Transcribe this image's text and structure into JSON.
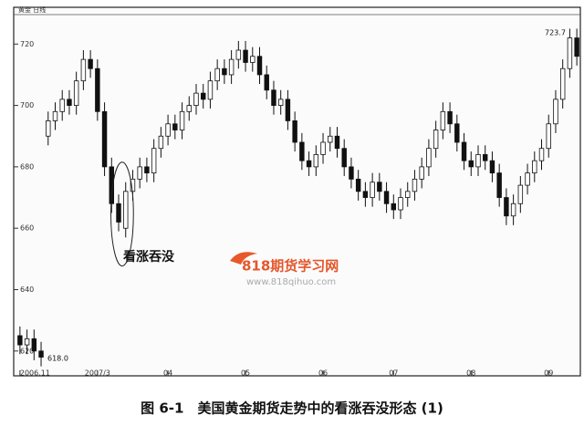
{
  "chart_data": {
    "type": "candlestick",
    "header": "黄金 日线",
    "annotation": "看涨吞没",
    "high_label": "723.7",
    "low_label": "618.0",
    "watermark": "818期货学习网",
    "watermark_url": "www.818qihuo.com",
    "caption": "图 6-1　美国黄金期货走势中的看涨吞没形态 (1)",
    "up_color": "#ffffff",
    "down_color": "#111111",
    "open": [
      625,
      622,
      624,
      620,
      690,
      695,
      698,
      702,
      700,
      708,
      715,
      712,
      698,
      680,
      668,
      660,
      672,
      676,
      680,
      678,
      686,
      690,
      694,
      692,
      698,
      700,
      704,
      702,
      708,
      712,
      710,
      715,
      718,
      714,
      716,
      710,
      705,
      700,
      702,
      695,
      688,
      682,
      680,
      684,
      688,
      690,
      686,
      680,
      676,
      672,
      670,
      675,
      672,
      668,
      666,
      670,
      672,
      676,
      680,
      686,
      692,
      698,
      694,
      688,
      682,
      680,
      684,
      682,
      678,
      670,
      664,
      668,
      674,
      678,
      682,
      686,
      694,
      702,
      712,
      722
    ],
    "high": [
      628,
      627,
      627,
      623,
      698,
      701,
      705,
      705,
      711,
      718,
      718,
      715,
      701,
      683,
      671,
      675,
      679,
      683,
      683,
      689,
      693,
      697,
      697,
      701,
      703,
      707,
      707,
      711,
      715,
      715,
      718,
      721,
      721,
      719,
      719,
      713,
      708,
      705,
      705,
      698,
      691,
      685,
      687,
      691,
      693,
      693,
      689,
      683,
      679,
      675,
      678,
      678,
      675,
      671,
      673,
      675,
      679,
      683,
      689,
      695,
      701,
      701,
      697,
      691,
      685,
      687,
      687,
      685,
      681,
      673,
      671,
      677,
      681,
      685,
      689,
      697,
      705,
      715,
      725,
      725
    ],
    "low": [
      619,
      619,
      617,
      615,
      687,
      692,
      695,
      697,
      697,
      705,
      709,
      695,
      677,
      665,
      659,
      657,
      669,
      673,
      675,
      675,
      683,
      687,
      689,
      689,
      695,
      697,
      699,
      699,
      705,
      707,
      707,
      712,
      711,
      711,
      707,
      702,
      697,
      697,
      692,
      685,
      679,
      677,
      677,
      681,
      685,
      683,
      677,
      673,
      669,
      667,
      667,
      669,
      665,
      663,
      663,
      667,
      669,
      673,
      677,
      683,
      689,
      691,
      685,
      679,
      677,
      677,
      679,
      675,
      667,
      661,
      661,
      665,
      671,
      675,
      679,
      683,
      691,
      699,
      709,
      713
    ],
    "close": [
      622,
      624,
      620,
      618,
      695,
      698,
      702,
      700,
      708,
      715,
      712,
      698,
      680,
      668,
      662,
      672,
      676,
      680,
      678,
      686,
      690,
      694,
      692,
      698,
      700,
      704,
      702,
      708,
      712,
      710,
      715,
      718,
      714,
      716,
      710,
      705,
      700,
      702,
      695,
      688,
      682,
      680,
      684,
      688,
      690,
      686,
      680,
      676,
      672,
      670,
      675,
      672,
      668,
      666,
      670,
      672,
      676,
      680,
      686,
      692,
      698,
      694,
      688,
      682,
      680,
      684,
      682,
      678,
      670,
      664,
      668,
      674,
      678,
      682,
      686,
      694,
      702,
      712,
      722,
      716
    ],
    "xlim": [
      0,
      80
    ],
    "xticks": [
      {
        "value": 0,
        "label": "2006.11"
      },
      {
        "value": 11,
        "label": "2007/3"
      },
      {
        "value": 21,
        "label": "04"
      },
      {
        "value": 32,
        "label": "05"
      },
      {
        "value": 43,
        "label": "06"
      },
      {
        "value": 53,
        "label": "07"
      },
      {
        "value": 64,
        "label": "08"
      },
      {
        "value": 75,
        "label": "09"
      }
    ],
    "ylim": [
      614,
      729
    ],
    "yticks": [
      620,
      640,
      660,
      680,
      700,
      720
    ],
    "engulf_index": 15
  }
}
